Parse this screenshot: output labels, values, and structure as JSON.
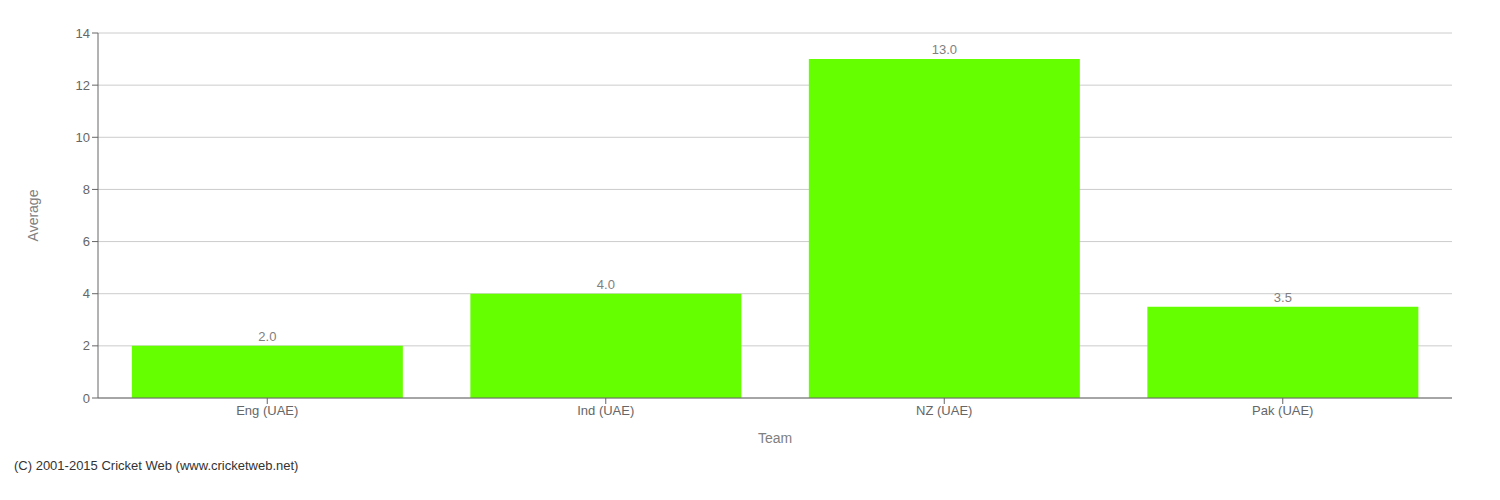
{
  "chart_data": {
    "type": "bar",
    "categories": [
      "Eng (UAE)",
      "Ind (UAE)",
      "NZ (UAE)",
      "Pak (UAE)"
    ],
    "values": [
      2.0,
      4.0,
      13.0,
      3.5
    ],
    "value_labels": [
      "2.0",
      "4.0",
      "13.0",
      "3.5"
    ],
    "data_labels": true,
    "color": "#66ff00",
    "xlabel": "Team",
    "ylabel": "Average",
    "ylim": [
      0,
      14
    ],
    "yticks": [
      0,
      2,
      4,
      6,
      8,
      10,
      12,
      14
    ],
    "grid": true,
    "annotations": [
      "(C) 2001-2015 Cricket Web (www.cricketweb.net)"
    ]
  }
}
